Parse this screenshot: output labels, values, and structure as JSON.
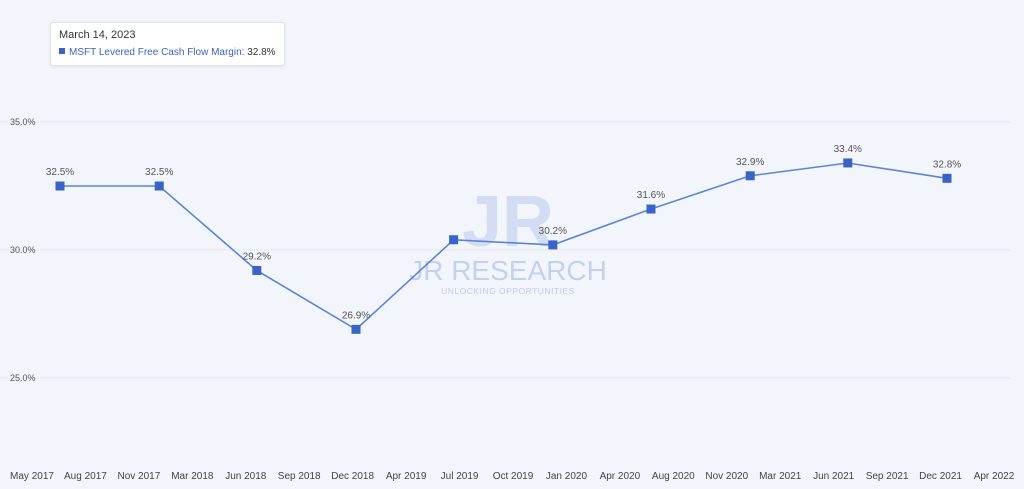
{
  "tooltip": {
    "date": "March 14, 2023",
    "series_label": "MSFT Levered Free Cash Flow Margin:",
    "value": "32.8%"
  },
  "watermark": {
    "logo": "JR",
    "name": "JR RESEARCH",
    "tagline": "UNLOCKING OPPORTUNITIES"
  },
  "colors": {
    "background": "#f3f5fc",
    "line": "#5b84d9",
    "marker": "#3a63c8",
    "grid": "#e4e8f2",
    "watermark": "#bac8ea"
  },
  "chart_data": {
    "type": "line",
    "series": [
      {
        "name": "MSFT Levered Free Cash Flow Margin",
        "points": [
          {
            "x": "2017-06-30",
            "y": 32.5,
            "label": "32.5%"
          },
          {
            "x": "2017-12-31",
            "y": 32.5,
            "label": "32.5%"
          },
          {
            "x": "2018-06-30",
            "y": 29.2,
            "label": "29.2%"
          },
          {
            "x": "2018-12-31",
            "y": 26.9,
            "label": "26.9%"
          },
          {
            "x": "2019-06-30",
            "y": 30.4,
            "label": ""
          },
          {
            "x": "2019-12-31",
            "y": 30.2,
            "label": "30.2%"
          },
          {
            "x": "2020-06-30",
            "y": 31.6,
            "label": "31.6%"
          },
          {
            "x": "2020-12-31",
            "y": 32.9,
            "label": "32.9%"
          },
          {
            "x": "2021-06-30",
            "y": 33.4,
            "label": "33.4%"
          },
          {
            "x": "2021-12-31",
            "y": 32.8,
            "label": "32.8%"
          }
        ]
      }
    ],
    "x_ticks": [
      "May 2017",
      "Aug 2017",
      "Nov 2017",
      "Mar 2018",
      "Jun 2018",
      "Sep 2018",
      "Dec 2018",
      "Apr 2019",
      "Jul 2019",
      "Oct 2019",
      "Jan 2020",
      "Apr 2020",
      "Aug 2020",
      "Nov 2020",
      "Mar 2021",
      "Jun 2021",
      "Sep 2021",
      "Dec 2021",
      "Apr 2022"
    ],
    "y_ticks": [
      "25.0%",
      "30.0%",
      "35.0%"
    ],
    "y_tick_values": [
      25,
      30,
      35
    ],
    "ylim": [
      22.5,
      37.5
    ],
    "grid": true,
    "legend": "none"
  }
}
